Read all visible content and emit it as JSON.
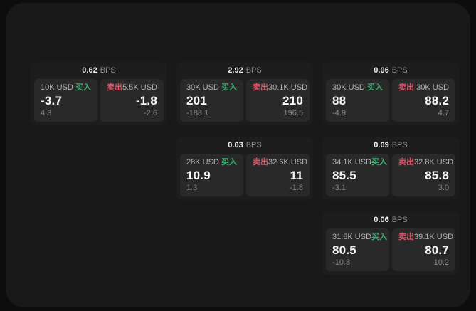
{
  "labels": {
    "bps_unit": "BPS",
    "buy": "买入",
    "sell": "卖出"
  },
  "colors": {
    "buy_green": "#3cae70",
    "sell_red": "#d75367",
    "surface": "#191919",
    "card": "#1d1d1d",
    "panel": "#292929"
  },
  "cards": [
    {
      "bps": "0.62",
      "buy": {
        "notional": "10K USD",
        "price": "-3.7",
        "sub": "4.3"
      },
      "sell": {
        "notional": "5.5K USD",
        "price": "-1.8",
        "sub": "-2.6"
      }
    },
    {
      "bps": "2.92",
      "buy": {
        "notional": "30K USD",
        "price": "201",
        "sub": "-188.1"
      },
      "sell": {
        "notional": "30.1K USD",
        "price": "210",
        "sub": "196.5"
      }
    },
    {
      "bps": "0.06",
      "buy": {
        "notional": "30K USD",
        "price": "88",
        "sub": "-4.9"
      },
      "sell": {
        "notional": "30K USD",
        "price": "88.2",
        "sub": "4.7"
      }
    },
    {
      "bps": "0.03",
      "buy": {
        "notional": "28K USD",
        "price": "10.9",
        "sub": "1.3"
      },
      "sell": {
        "notional": "32.6K USD",
        "price": "11",
        "sub": "-1.8"
      }
    },
    {
      "bps": "0.09",
      "buy": {
        "notional": "34.1K USD",
        "price": "85.5",
        "sub": "-3.1"
      },
      "sell": {
        "notional": "32.8K USD",
        "price": "85.8",
        "sub": "3.0"
      }
    },
    {
      "bps": "0.06",
      "buy": {
        "notional": "31.8K USD",
        "price": "80.5",
        "sub": "-10.8"
      },
      "sell": {
        "notional": "39.1K USD",
        "price": "80.7",
        "sub": "10.2"
      }
    }
  ]
}
